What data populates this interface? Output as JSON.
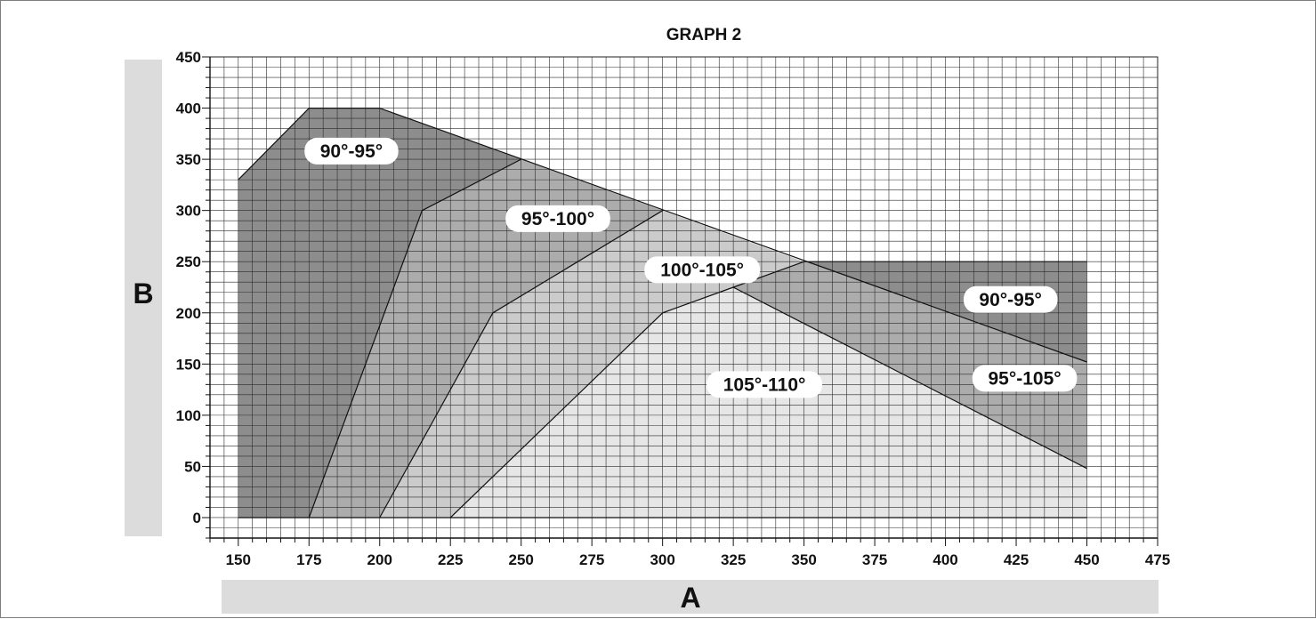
{
  "chart_data": {
    "type": "area",
    "title": "GRAPH 2",
    "xlabel": "A",
    "ylabel": "B",
    "xlim": [
      140,
      475
    ],
    "ylim": [
      -20,
      450
    ],
    "xticks": [
      150,
      175,
      200,
      225,
      250,
      275,
      300,
      325,
      350,
      375,
      400,
      425,
      450,
      475
    ],
    "yticks": [
      0,
      50,
      100,
      150,
      200,
      250,
      300,
      350,
      400,
      450
    ],
    "grid": true,
    "colors": {
      "region_90_95": "#8d8d8d",
      "region_95_100": "#acacac",
      "region_100_105": "#cbcbcb",
      "region_105_110": "#e6e6e6",
      "axis_bar": "#dcdcdc"
    },
    "regions": [
      {
        "name": "90°-95°",
        "fill": "region_90_95",
        "polygon": [
          [
            150,
            0
          ],
          [
            150,
            330
          ],
          [
            175,
            400
          ],
          [
            200,
            400
          ],
          [
            250,
            350
          ],
          [
            350,
            250
          ],
          [
            450,
            250
          ],
          [
            450,
            152
          ],
          [
            350,
            250
          ],
          [
            250,
            350
          ],
          [
            215,
            300
          ],
          [
            175,
            0
          ]
        ]
      },
      {
        "name": "95°-100°",
        "fill": "region_95_100",
        "polygon": [
          [
            175,
            0
          ],
          [
            215,
            300
          ],
          [
            250,
            350
          ],
          [
            300,
            300
          ],
          [
            240,
            200
          ],
          [
            200,
            0
          ]
        ]
      },
      {
        "name": "100°-105°",
        "fill": "region_100_105",
        "polygon": [
          [
            200,
            0
          ],
          [
            240,
            200
          ],
          [
            300,
            300
          ],
          [
            350,
            250
          ],
          [
            325,
            225
          ],
          [
            300,
            200
          ],
          [
            225,
            0
          ]
        ]
      },
      {
        "name": "95°-105°",
        "fill": "region_95_100",
        "polygon": [
          [
            325,
            225
          ],
          [
            350,
            250
          ],
          [
            450,
            152
          ],
          [
            450,
            48
          ]
        ]
      },
      {
        "name": "105°-110°",
        "fill": "region_105_110",
        "polygon": [
          [
            225,
            0
          ],
          [
            300,
            200
          ],
          [
            325,
            225
          ],
          [
            450,
            48
          ],
          [
            450,
            0
          ]
        ]
      }
    ],
    "boundary_lines": [
      [
        [
          150,
          330
        ],
        [
          175,
          400
        ],
        [
          200,
          400
        ],
        [
          450,
          152
        ]
      ],
      [
        [
          175,
          0
        ],
        [
          215,
          300
        ],
        [
          250,
          350
        ]
      ],
      [
        [
          200,
          0
        ],
        [
          240,
          200
        ],
        [
          300,
          300
        ]
      ],
      [
        [
          225,
          0
        ],
        [
          300,
          200
        ],
        [
          325,
          225
        ],
        [
          350,
          250
        ]
      ],
      [
        [
          325,
          225
        ],
        [
          450,
          48
        ]
      ],
      [
        [
          350,
          250
        ],
        [
          450,
          250
        ]
      ],
      [
        [
          150,
          0
        ],
        [
          450,
          0
        ]
      ]
    ],
    "annotations": [
      {
        "text": "90°-95°",
        "x": 190,
        "y": 358
      },
      {
        "text": "95°-100°",
        "x": 263,
        "y": 292
      },
      {
        "text": "100°-105°",
        "x": 314,
        "y": 242
      },
      {
        "text": "90°-95°",
        "x": 423,
        "y": 213
      },
      {
        "text": "105°-110°",
        "x": 336,
        "y": 130
      },
      {
        "text": "95°-105°",
        "x": 428,
        "y": 136
      }
    ]
  }
}
